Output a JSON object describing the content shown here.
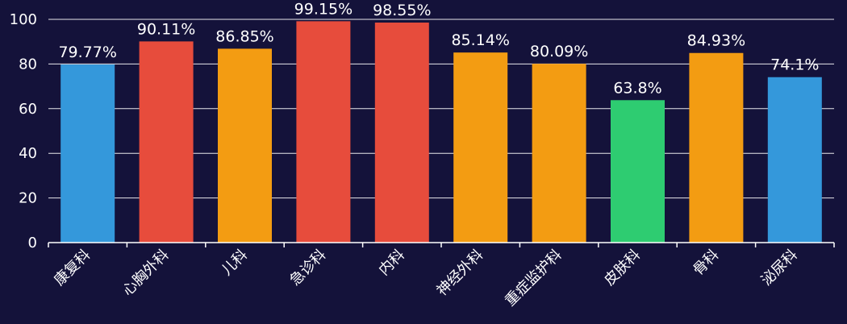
{
  "chart_data": {
    "type": "bar",
    "categories": [
      "康复科",
      "心胸外科",
      "儿科",
      "急诊科",
      "内科",
      "神经外科",
      "重症监护科",
      "皮肤科",
      "骨科",
      "泌尿科"
    ],
    "values": [
      79.77,
      90.11,
      86.85,
      99.15,
      98.55,
      85.14,
      80.09,
      63.8,
      84.93,
      74.1
    ],
    "data_labels": [
      "79.77%",
      "90.11%",
      "86.85%",
      "99.15%",
      "98.55%",
      "85.14%",
      "80.09%",
      "63.8%",
      "84.93%",
      "74.1%"
    ],
    "bar_colors": [
      "#3498db",
      "#e74c3c",
      "#f39c12",
      "#e74c3c",
      "#e74c3c",
      "#f39c12",
      "#f39c12",
      "#2ecc71",
      "#f39c12",
      "#3498db"
    ],
    "ylim": [
      0,
      100
    ],
    "yticks": [
      0,
      20,
      40,
      60,
      80,
      100
    ],
    "grid": true,
    "title": "",
    "xlabel": "",
    "ylabel": ""
  },
  "colors": {
    "background": "#14123a",
    "text": "#ffffff",
    "grid": "#ffffff"
  }
}
